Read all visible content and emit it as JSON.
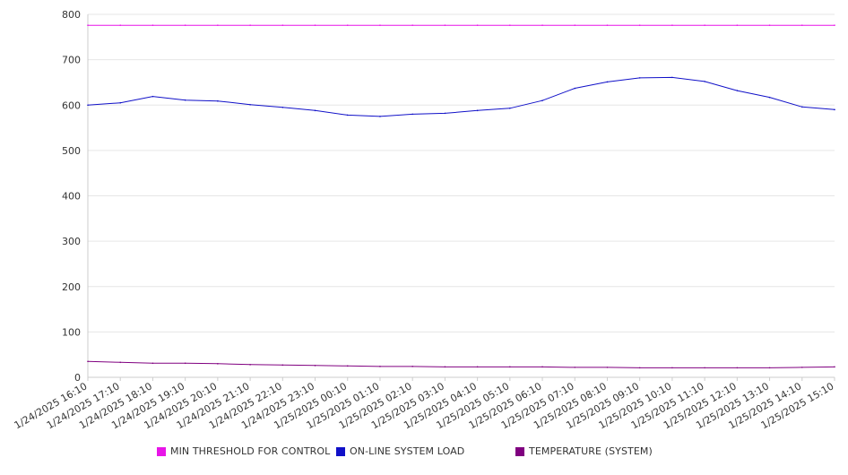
{
  "chart_data": {
    "type": "line",
    "title": "",
    "xlabel": "",
    "ylabel": "",
    "ylim": [
      0,
      800
    ],
    "yticks": [
      0,
      100,
      200,
      300,
      400,
      500,
      600,
      700,
      800
    ],
    "x_tick_labels": [
      "1/24/2025 16:10",
      "1/24/2025 17:10",
      "1/24/2025 18:10",
      "1/24/2025 19:10",
      "1/24/2025 20:10",
      "1/24/2025 21:10",
      "1/24/2025 22:10",
      "1/24/2025 23:10",
      "1/25/2025 00:10",
      "1/25/2025 01:10",
      "1/25/2025 02:10",
      "1/25/2025 03:10",
      "1/25/2025 04:10",
      "1/25/2025 05:10",
      "1/25/2025 06:10",
      "1/25/2025 07:10",
      "1/25/2025 08:10",
      "1/25/2025 09:10",
      "1/25/2025 10:10",
      "1/25/2025 11:10",
      "1/25/2025 12:10",
      "1/25/2025 13:10",
      "1/25/2025 14:10",
      "1/25/2025 15:10"
    ],
    "grid": true,
    "legend_position": "bottom",
    "series": [
      {
        "name": "MIN THRESHOLD FOR CONTROL",
        "color": "#e815e8",
        "values": [
          776,
          776,
          776,
          776,
          776,
          776,
          776,
          776,
          776,
          776,
          776,
          776,
          776,
          776,
          776,
          776,
          776,
          776,
          776,
          776,
          776,
          776,
          776,
          776
        ]
      },
      {
        "name": "ON-LINE SYSTEM LOAD",
        "color": "#1010c8",
        "values": [
          600,
          605,
          619,
          611,
          609,
          601,
          595,
          588,
          578,
          575,
          580,
          582,
          588,
          593,
          610,
          637,
          651,
          660,
          661,
          652,
          632,
          617,
          596,
          590
        ]
      },
      {
        "name": "TEMPERATURE (SYSTEM)",
        "color": "#800080",
        "values": [
          35,
          33,
          31,
          31,
          30,
          28,
          27,
          26,
          25,
          24,
          24,
          23,
          23,
          23,
          23,
          22,
          22,
          21,
          21,
          21,
          21,
          21,
          22,
          23
        ]
      }
    ]
  }
}
